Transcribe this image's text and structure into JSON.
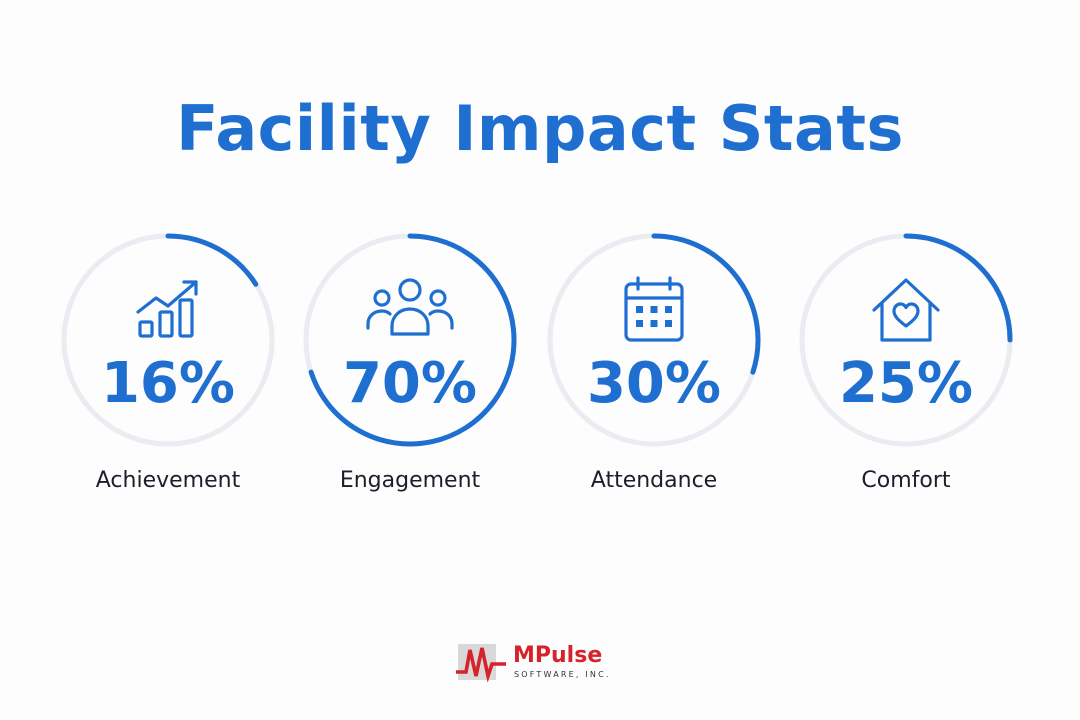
{
  "title": "Facility Impact Stats",
  "colors": {
    "accent": "#1f6fd1",
    "track": "#e9ecf1",
    "label": "#1b1f2a",
    "brand_red": "#d6222a"
  },
  "stats": [
    {
      "value": "16%",
      "fraction": 0.16,
      "label": "Achievement",
      "icon": "bar-chart-trend-icon"
    },
    {
      "value": "70%",
      "fraction": 0.7,
      "label": "Engagement",
      "icon": "people-group-icon"
    },
    {
      "value": "30%",
      "fraction": 0.3,
      "label": "Attendance",
      "icon": "calendar-icon"
    },
    {
      "value": "25%",
      "fraction": 0.25,
      "label": "Comfort",
      "icon": "house-heart-icon"
    }
  ],
  "logo": {
    "name": "MPulse",
    "sub": "SOFTWARE, INC."
  }
}
